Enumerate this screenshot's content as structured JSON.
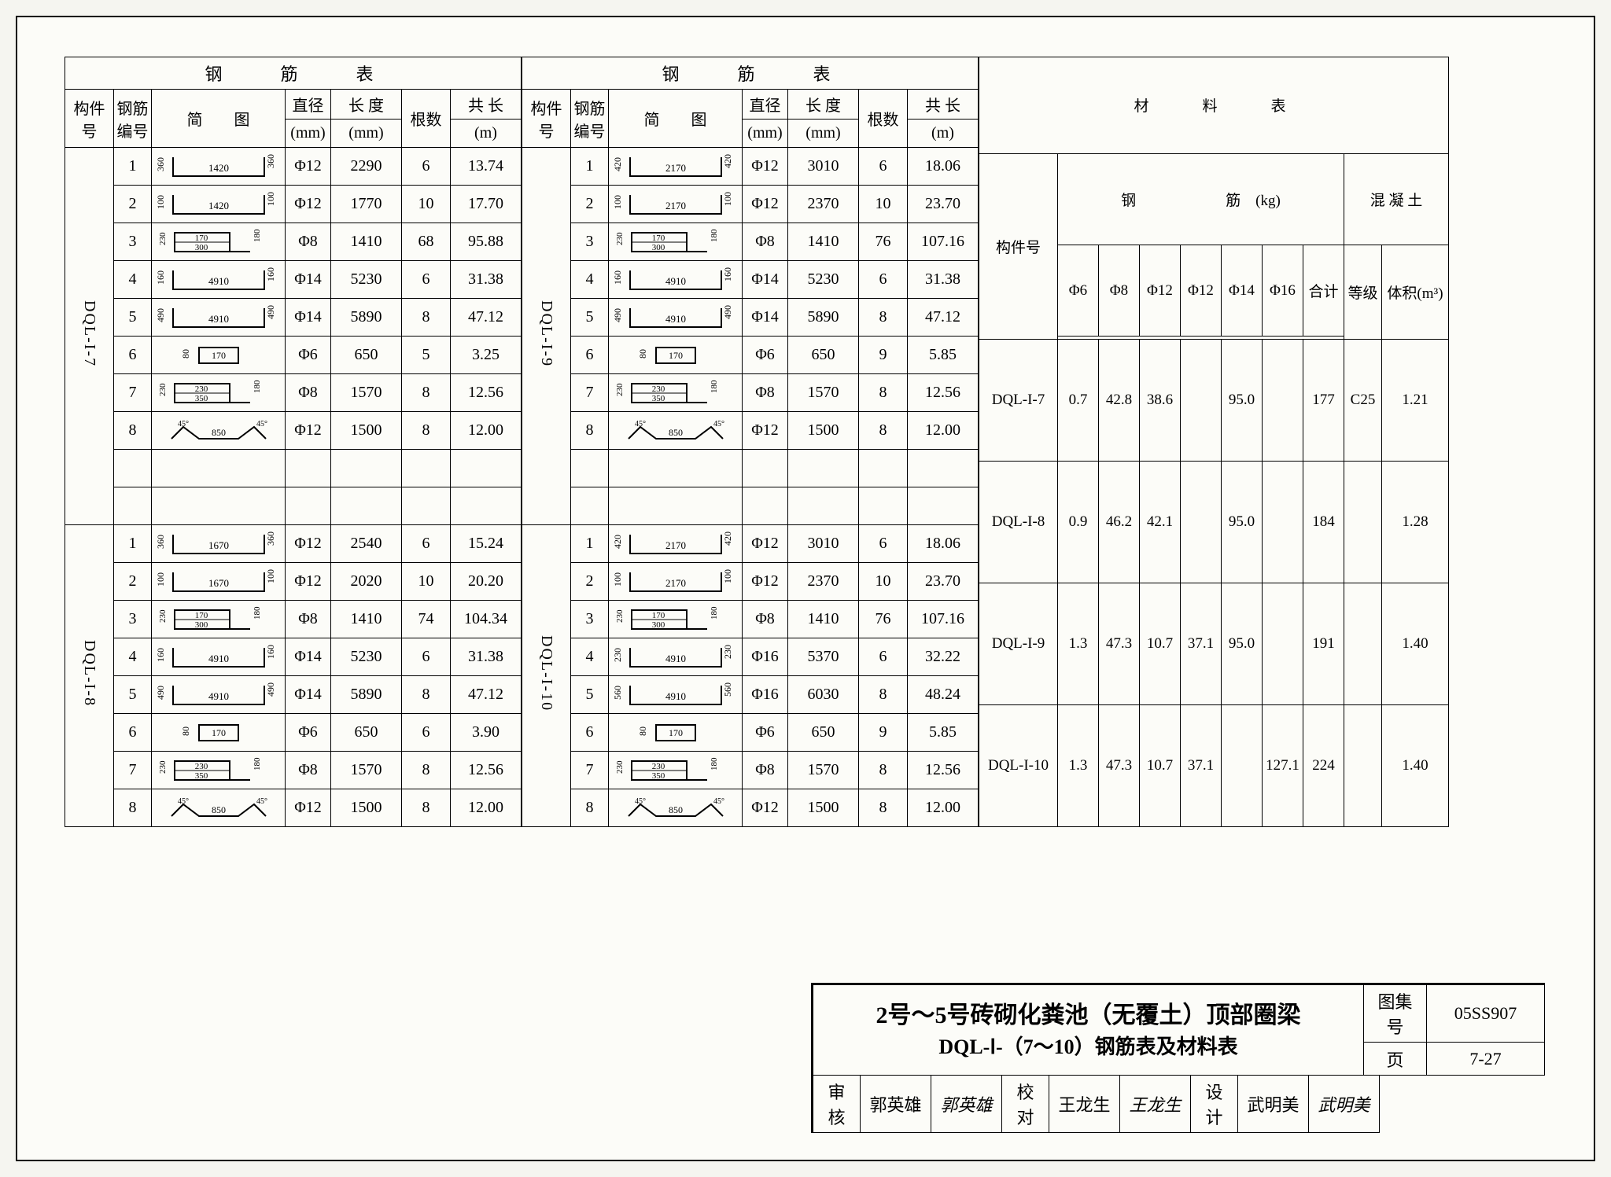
{
  "steel_header": {
    "title": "钢　　筋　　表",
    "cols": [
      "构件号",
      "钢筋编号",
      "简　　图",
      "直径",
      "长 度",
      "根数",
      "共 长"
    ],
    "units": [
      "",
      "",
      "",
      "(mm)",
      "(mm)",
      "",
      "(m)"
    ]
  },
  "mat_header": {
    "title": "材　　料　　表",
    "comp": "构件号",
    "steel": "钢　　　　　　筋",
    "kg": "(kg)",
    "dia_cols": [
      "Φ6",
      "Φ8",
      "Φ12",
      "Φ12",
      "Φ14",
      "Φ16",
      "合计"
    ],
    "conc": "混 凝 土",
    "grade": "等级",
    "vol": "体积(m³)"
  },
  "groups_left": [
    {
      "component": "DQL-I-7",
      "rows": [
        {
          "n": "1",
          "shape": {
            "type": "u",
            "l": "360",
            "m": "1420",
            "r": "360"
          },
          "d": "Φ12",
          "len": "2290",
          "q": "6",
          "t": "13.74"
        },
        {
          "n": "2",
          "shape": {
            "type": "u",
            "l": "100",
            "m": "1420",
            "r": "100"
          },
          "d": "Φ12",
          "len": "1770",
          "q": "10",
          "t": "17.70"
        },
        {
          "n": "3",
          "shape": {
            "type": "stirrup",
            "a": "230",
            "b": "170",
            "c": "300",
            "d": "180"
          },
          "d": "Φ8",
          "len": "1410",
          "q": "68",
          "t": "95.88"
        },
        {
          "n": "4",
          "shape": {
            "type": "u",
            "l": "160",
            "m": "4910",
            "r": "160"
          },
          "d": "Φ14",
          "len": "5230",
          "q": "6",
          "t": "31.38"
        },
        {
          "n": "5",
          "shape": {
            "type": "u",
            "l": "490",
            "m": "4910",
            "r": "490"
          },
          "d": "Φ14",
          "len": "5890",
          "q": "8",
          "t": "47.12"
        },
        {
          "n": "6",
          "shape": {
            "type": "hook1",
            "l": "80",
            "m": "170"
          },
          "d": "Φ6",
          "len": "650",
          "q": "5",
          "t": "3.25"
        },
        {
          "n": "7",
          "shape": {
            "type": "stirrup",
            "a": "230",
            "b": "230",
            "c": "350",
            "d": "180"
          },
          "d": "Φ8",
          "len": "1570",
          "q": "8",
          "t": "12.56"
        },
        {
          "n": "8",
          "shape": {
            "type": "bent",
            "l": "850"
          },
          "d": "Φ12",
          "len": "1500",
          "q": "8",
          "t": "12.00"
        },
        {
          "n": "",
          "shape": null,
          "d": "",
          "len": "",
          "q": "",
          "t": ""
        },
        {
          "n": "",
          "shape": null,
          "d": "",
          "len": "",
          "q": "",
          "t": ""
        }
      ]
    },
    {
      "component": "DQL-I-8",
      "rows": [
        {
          "n": "1",
          "shape": {
            "type": "u",
            "l": "360",
            "m": "1670",
            "r": "360"
          },
          "d": "Φ12",
          "len": "2540",
          "q": "6",
          "t": "15.24"
        },
        {
          "n": "2",
          "shape": {
            "type": "u",
            "l": "100",
            "m": "1670",
            "r": "100"
          },
          "d": "Φ12",
          "len": "2020",
          "q": "10",
          "t": "20.20"
        },
        {
          "n": "3",
          "shape": {
            "type": "stirrup",
            "a": "230",
            "b": "170",
            "c": "300",
            "d": "180"
          },
          "d": "Φ8",
          "len": "1410",
          "q": "74",
          "t": "104.34"
        },
        {
          "n": "4",
          "shape": {
            "type": "u",
            "l": "160",
            "m": "4910",
            "r": "160"
          },
          "d": "Φ14",
          "len": "5230",
          "q": "6",
          "t": "31.38"
        },
        {
          "n": "5",
          "shape": {
            "type": "u",
            "l": "490",
            "m": "4910",
            "r": "490"
          },
          "d": "Φ14",
          "len": "5890",
          "q": "8",
          "t": "47.12"
        },
        {
          "n": "6",
          "shape": {
            "type": "hook1",
            "l": "80",
            "m": "170"
          },
          "d": "Φ6",
          "len": "650",
          "q": "6",
          "t": "3.90"
        },
        {
          "n": "7",
          "shape": {
            "type": "stirrup",
            "a": "230",
            "b": "230",
            "c": "350",
            "d": "180"
          },
          "d": "Φ8",
          "len": "1570",
          "q": "8",
          "t": "12.56"
        },
        {
          "n": "8",
          "shape": {
            "type": "bent",
            "l": "850"
          },
          "d": "Φ12",
          "len": "1500",
          "q": "8",
          "t": "12.00"
        }
      ]
    }
  ],
  "groups_right": [
    {
      "component": "DQL-I-9",
      "rows": [
        {
          "n": "1",
          "shape": {
            "type": "u",
            "l": "420",
            "m": "2170",
            "r": "420"
          },
          "d": "Φ12",
          "len": "3010",
          "q": "6",
          "t": "18.06"
        },
        {
          "n": "2",
          "shape": {
            "type": "u",
            "l": "100",
            "m": "2170",
            "r": "100"
          },
          "d": "Φ12",
          "len": "2370",
          "q": "10",
          "t": "23.70"
        },
        {
          "n": "3",
          "shape": {
            "type": "stirrup",
            "a": "230",
            "b": "170",
            "c": "300",
            "d": "180"
          },
          "d": "Φ8",
          "len": "1410",
          "q": "76",
          "t": "107.16"
        },
        {
          "n": "4",
          "shape": {
            "type": "u",
            "l": "160",
            "m": "4910",
            "r": "160"
          },
          "d": "Φ14",
          "len": "5230",
          "q": "6",
          "t": "31.38"
        },
        {
          "n": "5",
          "shape": {
            "type": "u",
            "l": "490",
            "m": "4910",
            "r": "490"
          },
          "d": "Φ14",
          "len": "5890",
          "q": "8",
          "t": "47.12"
        },
        {
          "n": "6",
          "shape": {
            "type": "hook1",
            "l": "80",
            "m": "170"
          },
          "d": "Φ6",
          "len": "650",
          "q": "9",
          "t": "5.85"
        },
        {
          "n": "7",
          "shape": {
            "type": "stirrup",
            "a": "230",
            "b": "230",
            "c": "350",
            "d": "180"
          },
          "d": "Φ8",
          "len": "1570",
          "q": "8",
          "t": "12.56"
        },
        {
          "n": "8",
          "shape": {
            "type": "bent",
            "l": "850"
          },
          "d": "Φ12",
          "len": "1500",
          "q": "8",
          "t": "12.00"
        },
        {
          "n": "",
          "shape": null,
          "d": "",
          "len": "",
          "q": "",
          "t": ""
        },
        {
          "n": "",
          "shape": null,
          "d": "",
          "len": "",
          "q": "",
          "t": ""
        }
      ]
    },
    {
      "component": "DQL-I-10",
      "rows": [
        {
          "n": "1",
          "shape": {
            "type": "u",
            "l": "420",
            "m": "2170",
            "r": "420"
          },
          "d": "Φ12",
          "len": "3010",
          "q": "6",
          "t": "18.06"
        },
        {
          "n": "2",
          "shape": {
            "type": "u",
            "l": "100",
            "m": "2170",
            "r": "100"
          },
          "d": "Φ12",
          "len": "2370",
          "q": "10",
          "t": "23.70"
        },
        {
          "n": "3",
          "shape": {
            "type": "stirrup",
            "a": "230",
            "b": "170",
            "c": "300",
            "d": "180"
          },
          "d": "Φ8",
          "len": "1410",
          "q": "76",
          "t": "107.16"
        },
        {
          "n": "4",
          "shape": {
            "type": "u",
            "l": "230",
            "m": "4910",
            "r": "230"
          },
          "d": "Φ16",
          "len": "5370",
          "q": "6",
          "t": "32.22"
        },
        {
          "n": "5",
          "shape": {
            "type": "u",
            "l": "560",
            "m": "4910",
            "r": "560"
          },
          "d": "Φ16",
          "len": "6030",
          "q": "8",
          "t": "48.24"
        },
        {
          "n": "6",
          "shape": {
            "type": "hook1",
            "l": "80",
            "m": "170"
          },
          "d": "Φ6",
          "len": "650",
          "q": "9",
          "t": "5.85"
        },
        {
          "n": "7",
          "shape": {
            "type": "stirrup",
            "a": "230",
            "b": "230",
            "c": "350",
            "d": "180"
          },
          "d": "Φ8",
          "len": "1570",
          "q": "8",
          "t": "12.56"
        },
        {
          "n": "8",
          "shape": {
            "type": "bent",
            "l": "850"
          },
          "d": "Φ12",
          "len": "1500",
          "q": "8",
          "t": "12.00"
        }
      ]
    }
  ],
  "materials": [
    {
      "comp": "DQL-I-7",
      "d6": "0.7",
      "d8": "42.8",
      "d12a": "38.6",
      "d12b": "",
      "d14": "95.0",
      "d16": "",
      "sum": "177",
      "grade": "C25",
      "vol": "1.21"
    },
    {
      "comp": "DQL-I-8",
      "d6": "0.9",
      "d8": "46.2",
      "d12a": "42.1",
      "d12b": "",
      "d14": "95.0",
      "d16": "",
      "sum": "184",
      "grade": "",
      "vol": "1.28"
    },
    {
      "comp": "DQL-I-9",
      "d6": "1.3",
      "d8": "47.3",
      "d12a": "10.7",
      "d12b": "37.1",
      "d14": "95.0",
      "d16": "",
      "sum": "191",
      "grade": "",
      "vol": "1.40"
    },
    {
      "comp": "DQL-I-10",
      "d6": "1.3",
      "d8": "47.3",
      "d12a": "10.7",
      "d12b": "37.1",
      "d14": "",
      "d16": "127.1",
      "sum": "224",
      "grade": "",
      "vol": "1.40"
    }
  ],
  "title_block": {
    "main": "2号～5号砖砌化粪池（无覆土）顶部圈梁",
    "sub": "DQL-Ⅰ-（7～10）钢筋表及材料表",
    "set_label": "图集号",
    "set_no": "05SS907",
    "page_label": "页",
    "page_no": "7-27",
    "approve_l": "审核",
    "approve_n": "郭英雄",
    "check_l": "校对",
    "check_n": "王龙生",
    "design_l": "设计",
    "design_n": "武明美"
  }
}
